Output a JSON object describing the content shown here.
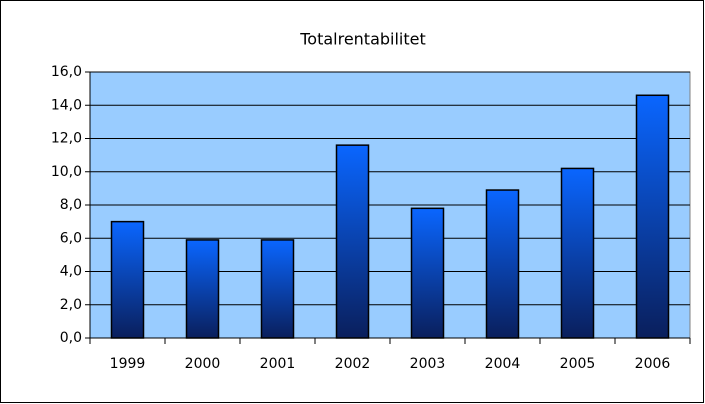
{
  "chart_data": {
    "type": "bar",
    "title": "Totalrentabilitet",
    "categories": [
      "1999",
      "2000",
      "2001",
      "2002",
      "2003",
      "2004",
      "2005",
      "2006"
    ],
    "values": [
      7.0,
      5.9,
      5.9,
      11.6,
      7.8,
      8.9,
      10.2,
      14.6
    ],
    "color": "#0a66ff",
    "ylim": [
      0,
      16
    ],
    "yticks": [
      {
        "value": 0,
        "label": "0,0"
      },
      {
        "value": 2,
        "label": "2,0"
      },
      {
        "value": 4,
        "label": "4,0"
      },
      {
        "value": 6,
        "label": "6,0"
      },
      {
        "value": 8,
        "label": "8,0"
      },
      {
        "value": 10,
        "label": "10,0"
      },
      {
        "value": 12,
        "label": "12,0"
      },
      {
        "value": 14,
        "label": "14,0"
      },
      {
        "value": 16,
        "label": "16,0"
      }
    ],
    "grid": true
  }
}
